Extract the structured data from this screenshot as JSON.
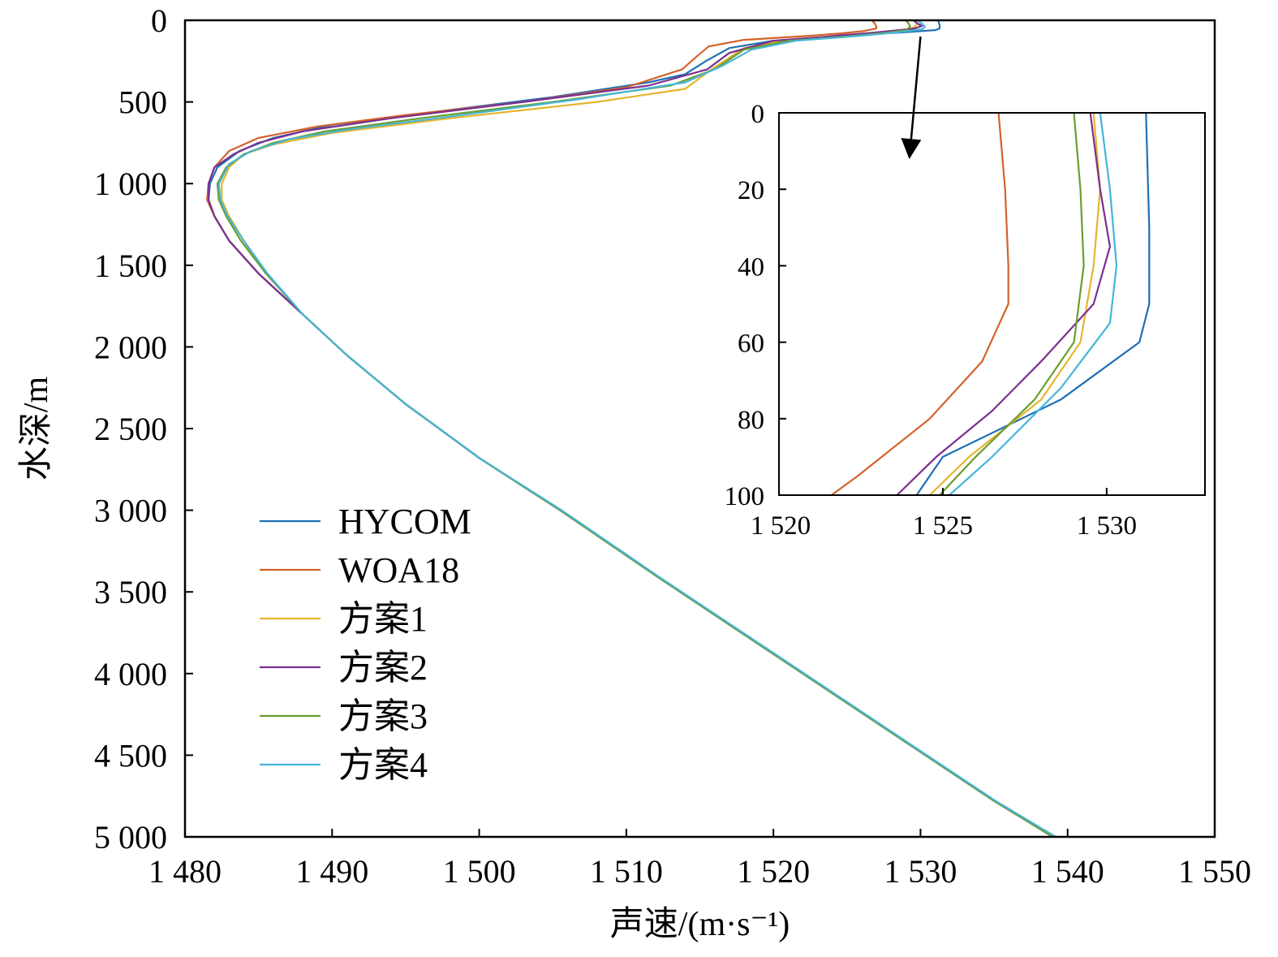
{
  "chart_data": [
    {
      "type": "line",
      "title": "",
      "xlabel": "声速/(m·s⁻¹)",
      "ylabel": "水深/m",
      "xlim": [
        1480,
        1550
      ],
      "ylim": [
        0,
        5000
      ],
      "y_inverted": true,
      "grid": false,
      "legend_position": "left-bottom",
      "xticks": [
        1480,
        1490,
        1500,
        1510,
        1520,
        1530,
        1540,
        1550
      ],
      "xtick_labels": [
        "1 480",
        "1 490",
        "1 500",
        "1 510",
        "1 520",
        "1 530",
        "1 540",
        "1 550"
      ],
      "yticks": [
        0,
        500,
        1000,
        1500,
        2000,
        2500,
        3000,
        3500,
        4000,
        4500,
        5000
      ],
      "ytick_labels": [
        "0",
        "500",
        "1 000",
        "1 500",
        "2 000",
        "2 500",
        "3 000",
        "3 500",
        "4 000",
        "4 500",
        "5 000"
      ],
      "series": [
        {
          "name": "HYCOM",
          "color": "#1f6fb5",
          "points": [
            [
              1531.2,
              0
            ],
            [
              1531.3,
              30
            ],
            [
              1531.3,
              50
            ],
            [
              1531.0,
              60
            ],
            [
              1528.6,
              75
            ],
            [
              1525.0,
              90
            ],
            [
              1524.2,
              100
            ],
            [
              1520.0,
              125
            ],
            [
              1517.0,
              170
            ],
            [
              1515.4,
              250
            ],
            [
              1514.0,
              330
            ],
            [
              1511.5,
              380
            ],
            [
              1505.0,
              470
            ],
            [
              1497.0,
              560
            ],
            [
              1490.0,
              640
            ],
            [
              1486.0,
              720
            ],
            [
              1483.7,
              800
            ],
            [
              1482.2,
              900
            ],
            [
              1481.7,
              1000
            ],
            [
              1481.6,
              1100
            ],
            [
              1482.0,
              1200
            ],
            [
              1483.0,
              1350
            ],
            [
              1485.0,
              1550
            ],
            [
              1488.0,
              1800
            ],
            [
              1491.0,
              2050
            ],
            [
              1495.0,
              2350
            ],
            [
              1500.0,
              2680
            ],
            [
              1505.5,
              3000
            ],
            [
              1512.0,
              3400
            ],
            [
              1520.0,
              3880
            ],
            [
              1529.0,
              4420
            ],
            [
              1535.0,
              4780
            ],
            [
              1539.0,
              5000
            ]
          ]
        },
        {
          "name": "WOA18",
          "color": "#d4622a",
          "points": [
            [
              1526.7,
              0
            ],
            [
              1526.9,
              20
            ],
            [
              1527.0,
              40
            ],
            [
              1527.0,
              50
            ],
            [
              1526.2,
              65
            ],
            [
              1524.6,
              80
            ],
            [
              1522.4,
              95
            ],
            [
              1521.6,
              100
            ],
            [
              1518.0,
              120
            ],
            [
              1515.6,
              160
            ],
            [
              1514.8,
              220
            ],
            [
              1513.8,
              300
            ],
            [
              1510.0,
              410
            ],
            [
              1503.0,
              500
            ],
            [
              1495.0,
              580
            ],
            [
              1489.0,
              650
            ],
            [
              1485.0,
              720
            ],
            [
              1483.0,
              800
            ],
            [
              1482.0,
              900
            ],
            [
              1481.6,
              1000
            ],
            [
              1481.5,
              1100
            ],
            [
              1482.0,
              1200
            ],
            [
              1483.0,
              1350
            ],
            [
              1485.0,
              1550
            ],
            [
              1488.0,
              1800
            ],
            [
              1491.0,
              2050
            ],
            [
              1495.0,
              2350
            ],
            [
              1500.0,
              2680
            ],
            [
              1505.5,
              3000
            ],
            [
              1512.0,
              3400
            ],
            [
              1520.0,
              3880
            ],
            [
              1529.0,
              4420
            ],
            [
              1535.0,
              4780
            ],
            [
              1539.0,
              5000
            ]
          ]
        },
        {
          "name": "方案1",
          "color": "#e6b52d",
          "points": [
            [
              1529.6,
              0
            ],
            [
              1529.8,
              20
            ],
            [
              1529.6,
              40
            ],
            [
              1529.2,
              60
            ],
            [
              1528.0,
              75
            ],
            [
              1525.8,
              90
            ],
            [
              1524.6,
              100
            ],
            [
              1521.0,
              120
            ],
            [
              1518.0,
              170
            ],
            [
              1515.8,
              300
            ],
            [
              1514.0,
              420
            ],
            [
              1508.0,
              500
            ],
            [
              1498.0,
              600
            ],
            [
              1490.0,
              690
            ],
            [
              1486.0,
              760
            ],
            [
              1484.0,
              820
            ],
            [
              1483.0,
              900
            ],
            [
              1482.5,
              1000
            ],
            [
              1482.5,
              1100
            ],
            [
              1483.0,
              1200
            ],
            [
              1484.0,
              1350
            ],
            [
              1485.5,
              1550
            ],
            [
              1488.0,
              1800
            ],
            [
              1491.0,
              2050
            ],
            [
              1495.0,
              2350
            ],
            [
              1500.0,
              2680
            ],
            [
              1505.5,
              3000
            ],
            [
              1512.0,
              3400
            ],
            [
              1520.0,
              3880
            ],
            [
              1529.0,
              4420
            ],
            [
              1535.0,
              4780
            ],
            [
              1539.0,
              5000
            ]
          ]
        },
        {
          "name": "方案2",
          "color": "#7b2f8f",
          "points": [
            [
              1529.5,
              0
            ],
            [
              1529.8,
              20
            ],
            [
              1530.1,
              35
            ],
            [
              1529.6,
              50
            ],
            [
              1528.0,
              65
            ],
            [
              1526.5,
              78
            ],
            [
              1524.8,
              90
            ],
            [
              1523.6,
              100
            ],
            [
              1520.0,
              125
            ],
            [
              1517.0,
              200
            ],
            [
              1515.5,
              300
            ],
            [
              1511.5,
              400
            ],
            [
              1503.0,
              500
            ],
            [
              1494.0,
              600
            ],
            [
              1488.0,
              680
            ],
            [
              1485.0,
              750
            ],
            [
              1483.3,
              820
            ],
            [
              1482.0,
              900
            ],
            [
              1481.6,
              1000
            ],
            [
              1481.6,
              1100
            ],
            [
              1482.0,
              1200
            ],
            [
              1483.0,
              1350
            ],
            [
              1485.0,
              1550
            ],
            [
              1488.0,
              1800
            ],
            [
              1491.0,
              2050
            ],
            [
              1495.0,
              2350
            ],
            [
              1500.0,
              2680
            ],
            [
              1505.5,
              3000
            ],
            [
              1512.0,
              3400
            ],
            [
              1520.0,
              3880
            ],
            [
              1529.0,
              4420
            ],
            [
              1535.0,
              4780
            ],
            [
              1539.0,
              5000
            ]
          ]
        },
        {
          "name": "方案3",
          "color": "#6a9e30",
          "points": [
            [
              1529.0,
              0
            ],
            [
              1529.2,
              20
            ],
            [
              1529.3,
              40
            ],
            [
              1529.0,
              60
            ],
            [
              1527.8,
              75
            ],
            [
              1526.0,
              90
            ],
            [
              1524.9,
              100
            ],
            [
              1521.0,
              125
            ],
            [
              1518.0,
              180
            ],
            [
              1516.0,
              300
            ],
            [
              1513.0,
              400
            ],
            [
              1505.0,
              500
            ],
            [
              1496.0,
              600
            ],
            [
              1489.5,
              680
            ],
            [
              1486.0,
              750
            ],
            [
              1484.0,
              820
            ],
            [
              1482.8,
              900
            ],
            [
              1482.2,
              1000
            ],
            [
              1482.3,
              1100
            ],
            [
              1482.8,
              1200
            ],
            [
              1483.8,
              1350
            ],
            [
              1485.5,
              1550
            ],
            [
              1488.0,
              1800
            ],
            [
              1491.0,
              2050
            ],
            [
              1495.0,
              2350
            ],
            [
              1500.0,
              2680
            ],
            [
              1505.5,
              3000
            ],
            [
              1512.0,
              3400
            ],
            [
              1520.0,
              3880
            ],
            [
              1529.0,
              4420
            ],
            [
              1535.0,
              4780
            ],
            [
              1539.0,
              5000
            ]
          ]
        },
        {
          "name": "方案4",
          "color": "#45b5d6",
          "points": [
            [
              1529.8,
              0
            ],
            [
              1530.1,
              20
            ],
            [
              1530.3,
              40
            ],
            [
              1530.1,
              55
            ],
            [
              1528.6,
              72
            ],
            [
              1526.5,
              90
            ],
            [
              1525.2,
              100
            ],
            [
              1521.5,
              125
            ],
            [
              1518.5,
              180
            ],
            [
              1516.5,
              280
            ],
            [
              1514.0,
              380
            ],
            [
              1507.0,
              480
            ],
            [
              1498.0,
              590
            ],
            [
              1491.0,
              670
            ],
            [
              1487.0,
              730
            ],
            [
              1484.5,
              800
            ],
            [
              1483.0,
              880
            ],
            [
              1482.3,
              1000
            ],
            [
              1482.4,
              1100
            ],
            [
              1482.9,
              1200
            ],
            [
              1484.0,
              1350
            ],
            [
              1485.6,
              1550
            ],
            [
              1488.0,
              1800
            ],
            [
              1491.0,
              2050
            ],
            [
              1495.0,
              2350
            ],
            [
              1500.0,
              2680
            ],
            [
              1505.6,
              3000
            ],
            [
              1512.1,
              3400
            ],
            [
              1520.1,
              3880
            ],
            [
              1529.1,
              4420
            ],
            [
              1535.1,
              4780
            ],
            [
              1539.2,
              5000
            ]
          ]
        }
      ]
    },
    {
      "type": "line",
      "title": "",
      "xlabel": "",
      "ylabel": "",
      "xlim": [
        1520,
        1533
      ],
      "ylim": [
        0,
        100
      ],
      "y_inverted": true,
      "grid": false,
      "legend_position": "none",
      "xticks": [
        1520,
        1525,
        1530
      ],
      "xtick_labels": [
        "1 520",
        "1 525",
        "1 530"
      ],
      "yticks": [
        0,
        20,
        40,
        60,
        80,
        100
      ],
      "ytick_labels": [
        "0",
        "20",
        "40",
        "60",
        "80",
        "100"
      ],
      "series_ref": "same series as main chart, zoomed to 0–100 m"
    }
  ],
  "legend": {
    "items": [
      "HYCOM",
      "WOA18",
      "方案1",
      "方案2",
      "方案3",
      "方案4"
    ]
  },
  "annotation": {
    "arrow_from": [
      1530,
      100
    ],
    "arrow_to_inset": [
      1524,
      10
    ]
  }
}
